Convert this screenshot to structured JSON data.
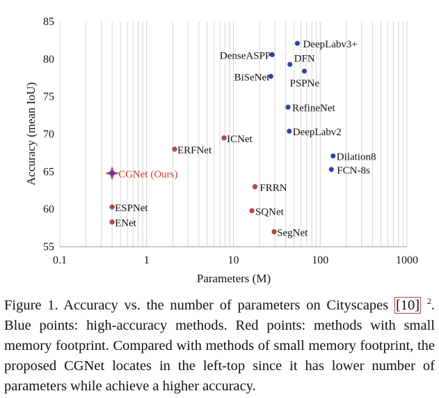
{
  "chart_data": {
    "type": "scatter",
    "xlabel": "Parameters (M)",
    "ylabel": "Accuracy (mean IoU)",
    "x_scale": "log",
    "xlim": [
      0.1,
      1000
    ],
    "ylim": [
      55,
      85
    ],
    "x_ticks": [
      "0.1",
      "1",
      "10",
      "100",
      "1000"
    ],
    "y_ticks": [
      "55",
      "60",
      "65",
      "70",
      "75",
      "80",
      "85"
    ],
    "grid": "vertical log minor gridlines",
    "series": [
      {
        "color": "#1f3fd0",
        "points": [
          {
            "label": "DeepLabv3+",
            "x": 54.6,
            "y": 82.1
          },
          {
            "label": "DenseASPP",
            "x": 28,
            "y": 80.6
          },
          {
            "label": "DFN",
            "x": 44.8,
            "y": 79.3
          },
          {
            "label": "BiSeNet",
            "x": 27,
            "y": 77.7
          },
          {
            "label": "PSPNe",
            "x": 65.7,
            "y": 78.4
          },
          {
            "label": "RefineNet",
            "x": 42.6,
            "y": 73.6
          },
          {
            "label": "DeepLabv2",
            "x": 44,
            "y": 70.4
          },
          {
            "label": "Dilation8",
            "x": 140.8,
            "y": 67.1
          },
          {
            "label": "FCN-8s",
            "x": 134.5,
            "y": 65.3
          }
        ]
      },
      {
        "color": "#d23a3a",
        "points": [
          {
            "label": "ICNet",
            "x": 7.8,
            "y": 69.5
          },
          {
            "label": "ERFNet",
            "x": 2.1,
            "y": 68.0
          },
          {
            "label": "FRRN",
            "x": 17.7,
            "y": 63.0
          },
          {
            "label": "SQNet",
            "x": 16.3,
            "y": 59.8
          },
          {
            "label": "ESPNet",
            "x": 0.4,
            "y": 60.3
          },
          {
            "label": "ENet",
            "x": 0.4,
            "y": 58.3
          },
          {
            "label": "SegNet",
            "x": 29.5,
            "y": 57.0
          }
        ]
      },
      {
        "color": "#d23a3a",
        "points": [
          {
            "label": "CGNet (Ours)",
            "x": 0.4,
            "y": 64.8,
            "highlight": true
          }
        ]
      }
    ]
  },
  "caption": {
    "figure_label": "Figure 1.",
    "text_part1": "Accuracy vs. the number of parameters on Cityscapes",
    "ref": "[10]",
    "sup": "2",
    "text_part2": ". Blue points: high-accuracy methods. Red points: methods with small memory footprint. Compared with methods of small memory footprint, the proposed CGNet locates in the left-top since it has lower number of parameters while achieve a higher accuracy."
  }
}
